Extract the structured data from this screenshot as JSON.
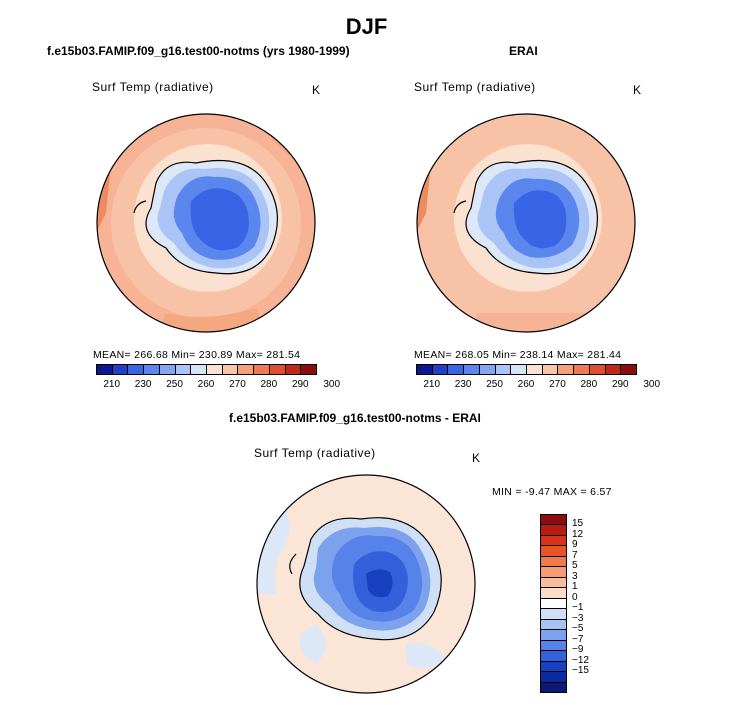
{
  "figure": {
    "title": "DJF"
  },
  "panels": [
    {
      "title": "f.e15b03.FAMIP.f09_g16.test00-notms (yrs 1980-1999)",
      "variable": "Surf Temp (radiative)",
      "units": "K",
      "stats": "MEAN= 266.68   Min= 230.89   Max= 281.54"
    },
    {
      "title": "ERAI",
      "variable": "Surf Temp (radiative)",
      "units": "K",
      "stats": "MEAN= 268.05   Min= 238.14   Max= 281.44"
    },
    {
      "title": "f.e15b03.FAMIP.f09_g16.test00-notms - ERAI",
      "variable": "Surf Temp (radiative)",
      "units": "K",
      "stats": "MIN =   -9.47  MAX =    6.57"
    }
  ],
  "colorbar_abs": {
    "colors": [
      "#0a1a8c",
      "#1f3fc8",
      "#3a64e6",
      "#5a86ee",
      "#82a6f2",
      "#aac4f5",
      "#d6e4f8",
      "#fbe3d2",
      "#f9c4a8",
      "#f5a07a",
      "#ef7a52",
      "#e0502e",
      "#c22818",
      "#8e0c0c"
    ],
    "labels": [
      "210",
      "230",
      "250",
      "260",
      "270",
      "280",
      "290",
      "300"
    ]
  },
  "colorbar_diff": {
    "colors": [
      "#8e0c0c",
      "#b81c10",
      "#d4341a",
      "#e85424",
      "#f27a48",
      "#f59c74",
      "#f8bc9c",
      "#fbdcc6",
      "#ffffff",
      "#cfe0f6",
      "#a6c2f2",
      "#7ca2ee",
      "#5682ea",
      "#3460dc",
      "#1a40c2",
      "#0c2aa0",
      "#0a1a78"
    ],
    "labels": [
      "15",
      "12",
      "9",
      "7",
      "5",
      "3",
      "1",
      "0",
      "−1",
      "−3",
      "−5",
      "−7",
      "−9",
      "−12",
      "−15"
    ]
  },
  "chart_data": {
    "type": "heatmap",
    "title": "DJF",
    "description_units": "K",
    "panels": [
      {
        "name": "f.e15b03.FAMIP.f09_g16.test00-notms (yrs 1980-1999)",
        "mean": 266.68,
        "min": 230.89,
        "max": 281.54
      },
      {
        "name": "ERAI",
        "mean": 268.05,
        "min": 238.14,
        "max": 281.44
      },
      {
        "name": "f.e15b03.FAMIP.f09_g16.test00-notms - ERAI",
        "min": -9.47,
        "max": 6.57
      }
    ],
    "abs_levels": [
      210,
      230,
      250,
      260,
      270,
      280,
      290,
      300
    ],
    "diff_levels": [
      15,
      12,
      9,
      7,
      5,
      3,
      1,
      0,
      -1,
      -3,
      -5,
      -7,
      -9,
      -12,
      -15
    ]
  }
}
